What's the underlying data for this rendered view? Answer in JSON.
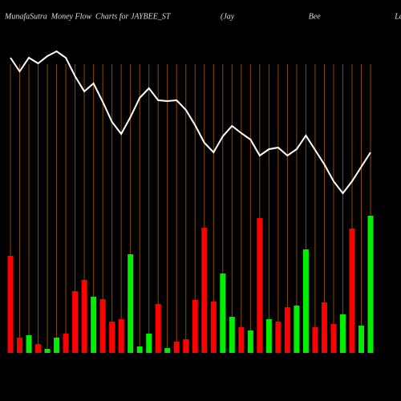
{
  "chart_data": {
    "type": "money-flow",
    "title": "MunafaSutra  Money Flow  Charts for JAYBEE_ST",
    "subtitle": "(Jay Bee Laminations L",
    "line_color": "#ffffff",
    "grid_color": "#8a4a06",
    "series": [
      {
        "name": "price",
        "values": [
          368,
          351,
          368,
          361,
          370,
          376,
          368,
          345,
          326,
          336,
          313,
          288,
          273,
          294,
          318,
          330,
          315,
          314,
          315,
          303,
          284,
          262,
          250,
          270,
          283,
          274,
          266,
          246,
          254,
          256,
          246,
          254,
          271,
          253,
          235,
          214,
          199,
          214,
          232,
          250
        ]
      },
      {
        "name": "money-flow",
        "values": [
          121,
          19,
          22,
          11,
          5,
          19,
          24,
          77,
          91,
          70,
          67,
          39,
          42,
          123,
          8,
          24,
          61,
          6,
          14,
          17,
          66,
          156,
          64,
          99,
          45,
          32,
          28,
          168,
          42,
          39,
          57,
          59,
          129,
          32,
          63,
          36,
          48,
          155,
          34,
          171
        ],
        "colors": [
          "#ff0000",
          "#ff0000",
          "#00ee00",
          "#ff0000",
          "#00ee00",
          "#00ee00",
          "#ff0000",
          "#ff0000",
          "#ff0000",
          "#00ee00",
          "#ff0000",
          "#ff0000",
          "#ff0000",
          "#00ee00",
          "#00ee00",
          "#00ee00",
          "#ff0000",
          "#00ee00",
          "#ff0000",
          "#ff0000",
          "#ff0000",
          "#ff0000",
          "#ff0000",
          "#00ee00",
          "#00ee00",
          "#ff0000",
          "#00ee00",
          "#ff0000",
          "#00ee00",
          "#ff0000",
          "#ff0000",
          "#00ee00",
          "#00ee00",
          "#ff0000",
          "#ff0000",
          "#ff0000",
          "#00ee00",
          "#ff0000",
          "#00ee00",
          "#00ee00"
        ]
      }
    ]
  }
}
